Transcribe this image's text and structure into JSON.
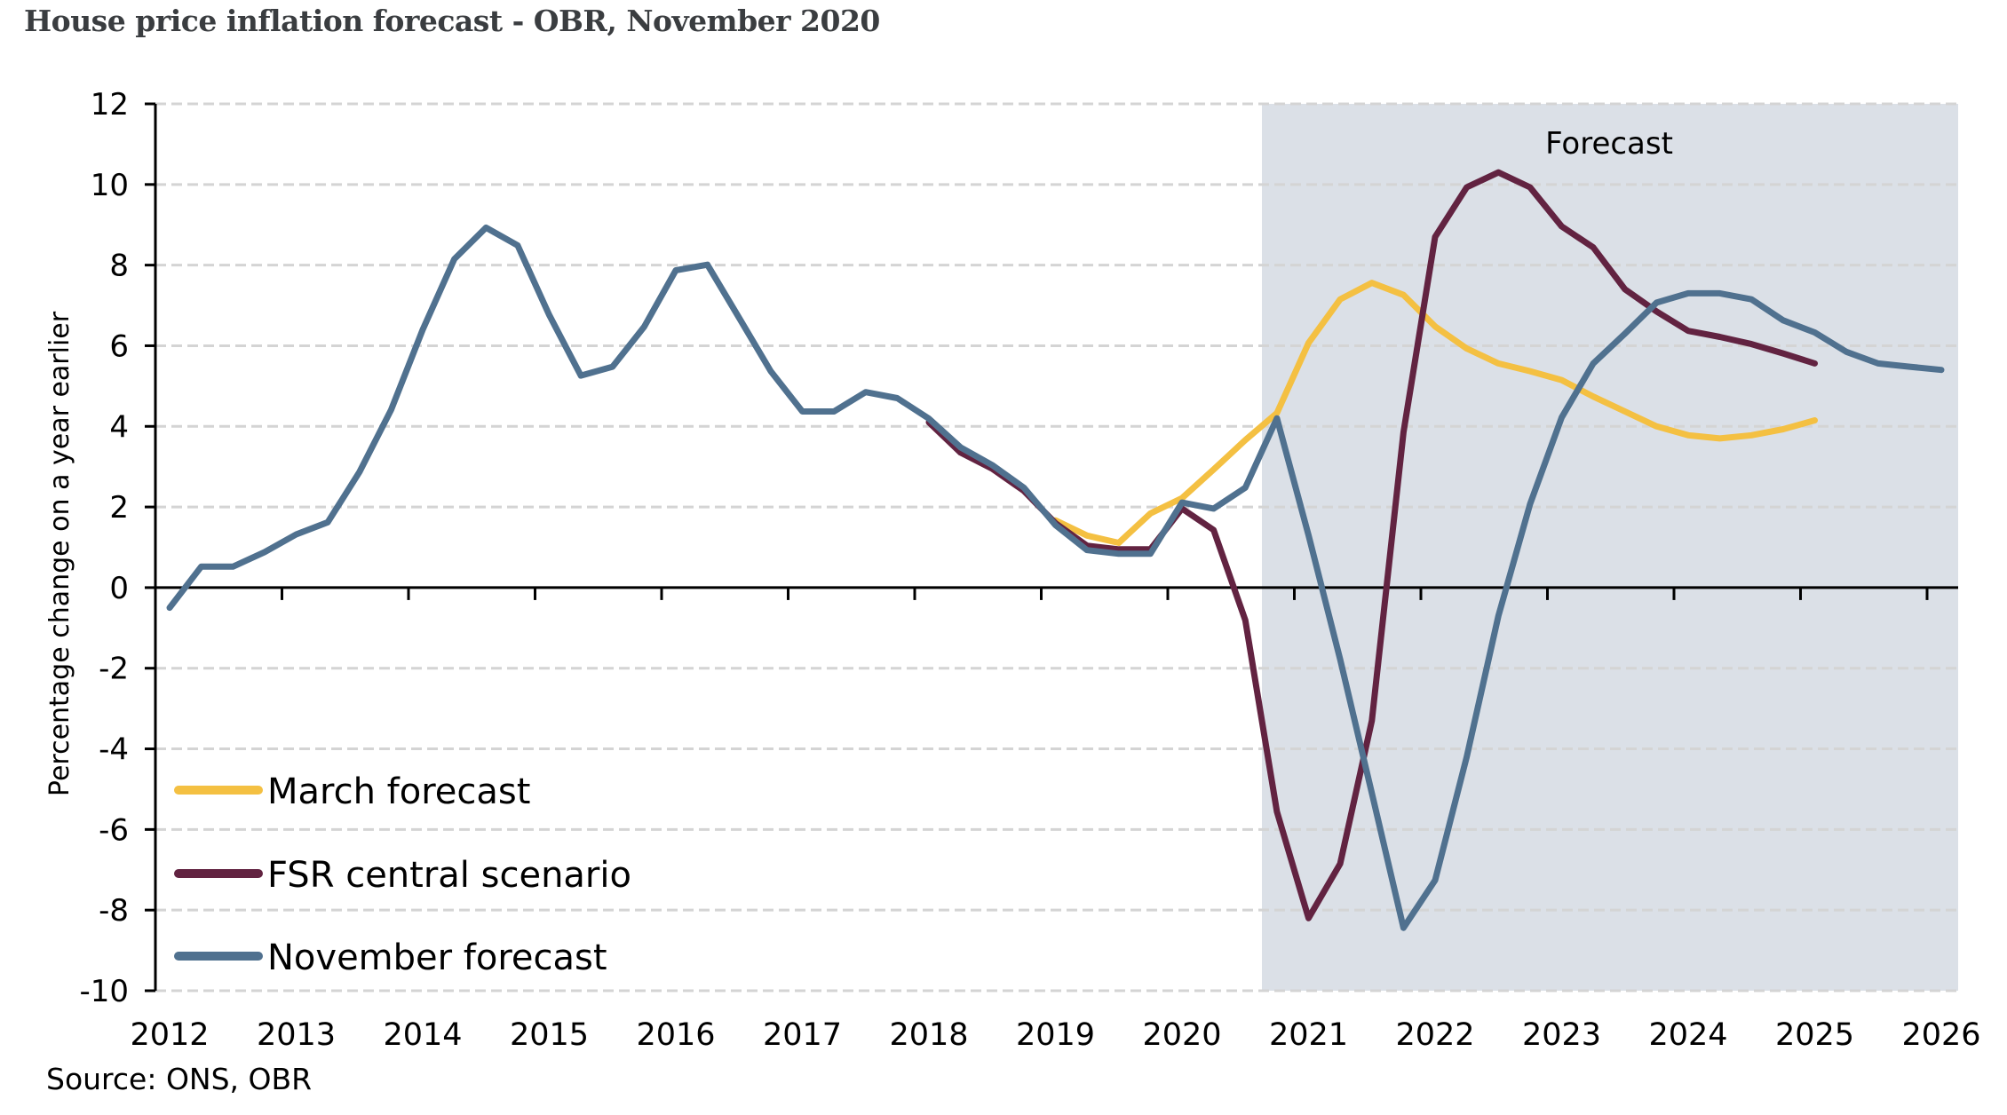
{
  "title": "House price inflation forecast - OBR, November 2020",
  "source": "Source: ONS, OBR",
  "chart_data": {
    "type": "line",
    "title": "House price inflation forecast - OBR, November 2020",
    "xlabel": "",
    "ylabel": "Percentage change on a year earlier",
    "ylim": [
      -10,
      12
    ],
    "yticks": [
      "12",
      "10",
      "8",
      "6",
      "4",
      "2",
      "0",
      "-2",
      "-4",
      "-6",
      "-8",
      "-10"
    ],
    "xticks": [
      "2012",
      "2013",
      "2014",
      "2015",
      "2016",
      "2017",
      "2018",
      "2019",
      "2020",
      "2021",
      "2022",
      "2023",
      "2024",
      "2025",
      "2026"
    ],
    "frequency": "quarterly",
    "x_start": "2012 Q1",
    "grid": "horizontal dashed",
    "shaded_region": {
      "label": "Forecast",
      "from": "2020 Q4",
      "to": "2026"
    },
    "legend_position": "bottom-left",
    "series": [
      {
        "name": "March forecast",
        "color": "#f4c042",
        "start_index": 28,
        "values": [
          1.67,
          1.29,
          1.11,
          1.84,
          2.22,
          2.93,
          3.66,
          4.33,
          6.07,
          7.15,
          7.56,
          7.26,
          6.48,
          5.93,
          5.56,
          5.37,
          5.15,
          4.74,
          4.37,
          4.0,
          3.78,
          3.7,
          3.78,
          3.93,
          4.15
        ]
      },
      {
        "name": "FSR central scenario",
        "color": "#622341",
        "start_index": 24,
        "values": [
          4.1,
          3.35,
          2.95,
          2.4,
          1.6,
          1.04,
          0.95,
          0.95,
          1.96,
          1.43,
          -0.81,
          -5.56,
          -8.2,
          -6.85,
          -3.3,
          3.85,
          8.7,
          9.93,
          10.3,
          9.93,
          8.96,
          8.44,
          7.4,
          6.85,
          6.37,
          6.22,
          6.04,
          5.81,
          5.56
        ]
      },
      {
        "name": "November forecast",
        "color": "#50718f",
        "start_index": 0,
        "values": [
          -0.5,
          0.52,
          0.52,
          0.88,
          1.32,
          1.62,
          2.87,
          4.41,
          6.4,
          8.15,
          8.93,
          8.49,
          6.76,
          5.26,
          5.48,
          6.47,
          7.87,
          8.01,
          6.69,
          5.37,
          4.37,
          4.37,
          4.85,
          4.7,
          4.19,
          3.48,
          3.04,
          2.48,
          1.55,
          0.93,
          0.84,
          0.84,
          2.11,
          1.96,
          2.48,
          4.2,
          1.3,
          -1.78,
          -5.1,
          -8.44,
          -7.26,
          -4.2,
          -0.7,
          2.07,
          4.22,
          5.56,
          6.3,
          7.07,
          7.3,
          7.3,
          7.15,
          6.63,
          6.33,
          5.85,
          5.56,
          5.48,
          5.4
        ]
      }
    ]
  }
}
